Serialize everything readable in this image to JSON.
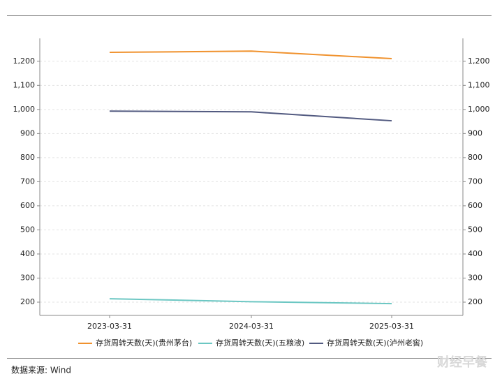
{
  "chart_data": {
    "type": "line",
    "categories": [
      "2023-03-31",
      "2024-03-31",
      "2025-03-31"
    ],
    "series": [
      {
        "name": "存货周转天数(天)(贵州茅台)",
        "color": "#f0922e",
        "values": [
          1237,
          1242,
          1211
        ]
      },
      {
        "name": "存货周转天数(天)(五粮液)",
        "color": "#6cc7c3",
        "values": [
          214,
          202,
          194
        ]
      },
      {
        "name": "存货周转天数(天)(泸州老窖)",
        "color": "#525a80",
        "values": [
          993,
          990,
          953
        ]
      }
    ],
    "ylim": [
      145,
      1295
    ],
    "yticks": [
      200,
      300,
      400,
      500,
      600,
      700,
      800,
      900,
      {
        "value": 1000,
        "label": "1,000"
      },
      {
        "value": 1100,
        "label": "1,100"
      },
      {
        "value": 1200,
        "label": "1,200"
      }
    ],
    "grid": true,
    "legend": "bottom",
    "source": "数据来源: Wind",
    "watermark": "财经早餐"
  }
}
